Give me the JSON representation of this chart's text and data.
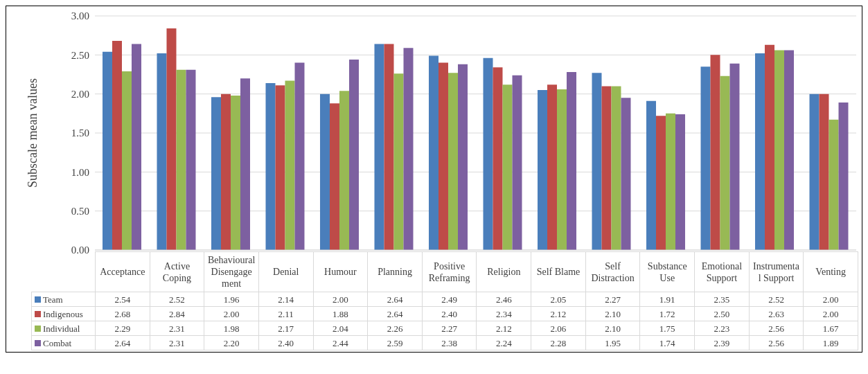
{
  "chart_data": {
    "type": "bar",
    "ylabel": "Subscale mean values",
    "categories": [
      "Acceptance",
      "Active Coping",
      "Behavioural Disengagement",
      "Denial",
      "Humour",
      "Planning",
      "Positive Reframing",
      "Religion",
      "Self Blame",
      "Self Distraction",
      "Substance Use",
      "Emotional Support",
      "Instrumental Support",
      "Venting"
    ],
    "series": [
      {
        "name": "Team",
        "color": "#4a7ebb",
        "values": [
          2.54,
          2.52,
          1.96,
          2.14,
          2.0,
          2.64,
          2.49,
          2.46,
          2.05,
          2.27,
          1.91,
          2.35,
          2.52,
          2.0
        ],
        "value_labels": [
          "2.54",
          "2.52",
          "1.96",
          "2.14",
          "2.00",
          "2.64",
          "2.49",
          "2.46",
          "2.05",
          "2.27",
          "1.91",
          "2.35",
          "2.52",
          "2.00"
        ]
      },
      {
        "name": "Indigenous",
        "color": "#be4b48",
        "values": [
          2.68,
          2.84,
          2.0,
          2.11,
          1.88,
          2.64,
          2.4,
          2.34,
          2.12,
          2.1,
          1.72,
          2.5,
          2.63,
          2.0
        ],
        "value_labels": [
          "2.68",
          "2.84",
          "2.00",
          "2.11",
          "1.88",
          "2.64",
          "2.40",
          "2.34",
          "2.12",
          "2.10",
          "1.72",
          "2.50",
          "2.63",
          "2.00"
        ]
      },
      {
        "name": "Individual",
        "color": "#98b954",
        "values": [
          2.29,
          2.31,
          1.98,
          2.17,
          2.04,
          2.26,
          2.27,
          2.12,
          2.06,
          2.1,
          1.75,
          2.23,
          2.56,
          1.67
        ],
        "value_labels": [
          "2.29",
          "2.31",
          "1.98",
          "2.17",
          "2.04",
          "2.26",
          "2.27",
          "2.12",
          "2.06",
          "2.10",
          "1.75",
          "2.23",
          "2.56",
          "1.67"
        ]
      },
      {
        "name": "Combat",
        "color": "#7d60a0",
        "values": [
          2.64,
          2.31,
          2.2,
          2.4,
          2.44,
          2.59,
          2.38,
          2.24,
          2.28,
          1.95,
          1.74,
          2.39,
          2.56,
          1.89
        ],
        "value_labels": [
          "2.64",
          "2.31",
          "2.20",
          "2.40",
          "2.44",
          "2.59",
          "2.38",
          "2.24",
          "2.28",
          "1.95",
          "1.74",
          "2.39",
          "2.56",
          "1.89"
        ]
      }
    ],
    "ylim": [
      0,
      3
    ],
    "yticks": [
      {
        "value": 0,
        "label": "0.00"
      },
      {
        "value": 0.5,
        "label": "0.50"
      },
      {
        "value": 1,
        "label": "1.00"
      },
      {
        "value": 1.5,
        "label": "1.50"
      },
      {
        "value": 2,
        "label": "2.00"
      },
      {
        "value": 2.5,
        "label": "2.50"
      },
      {
        "value": 3,
        "label": "3.00"
      }
    ],
    "grid": "y",
    "legend": "bottom"
  }
}
